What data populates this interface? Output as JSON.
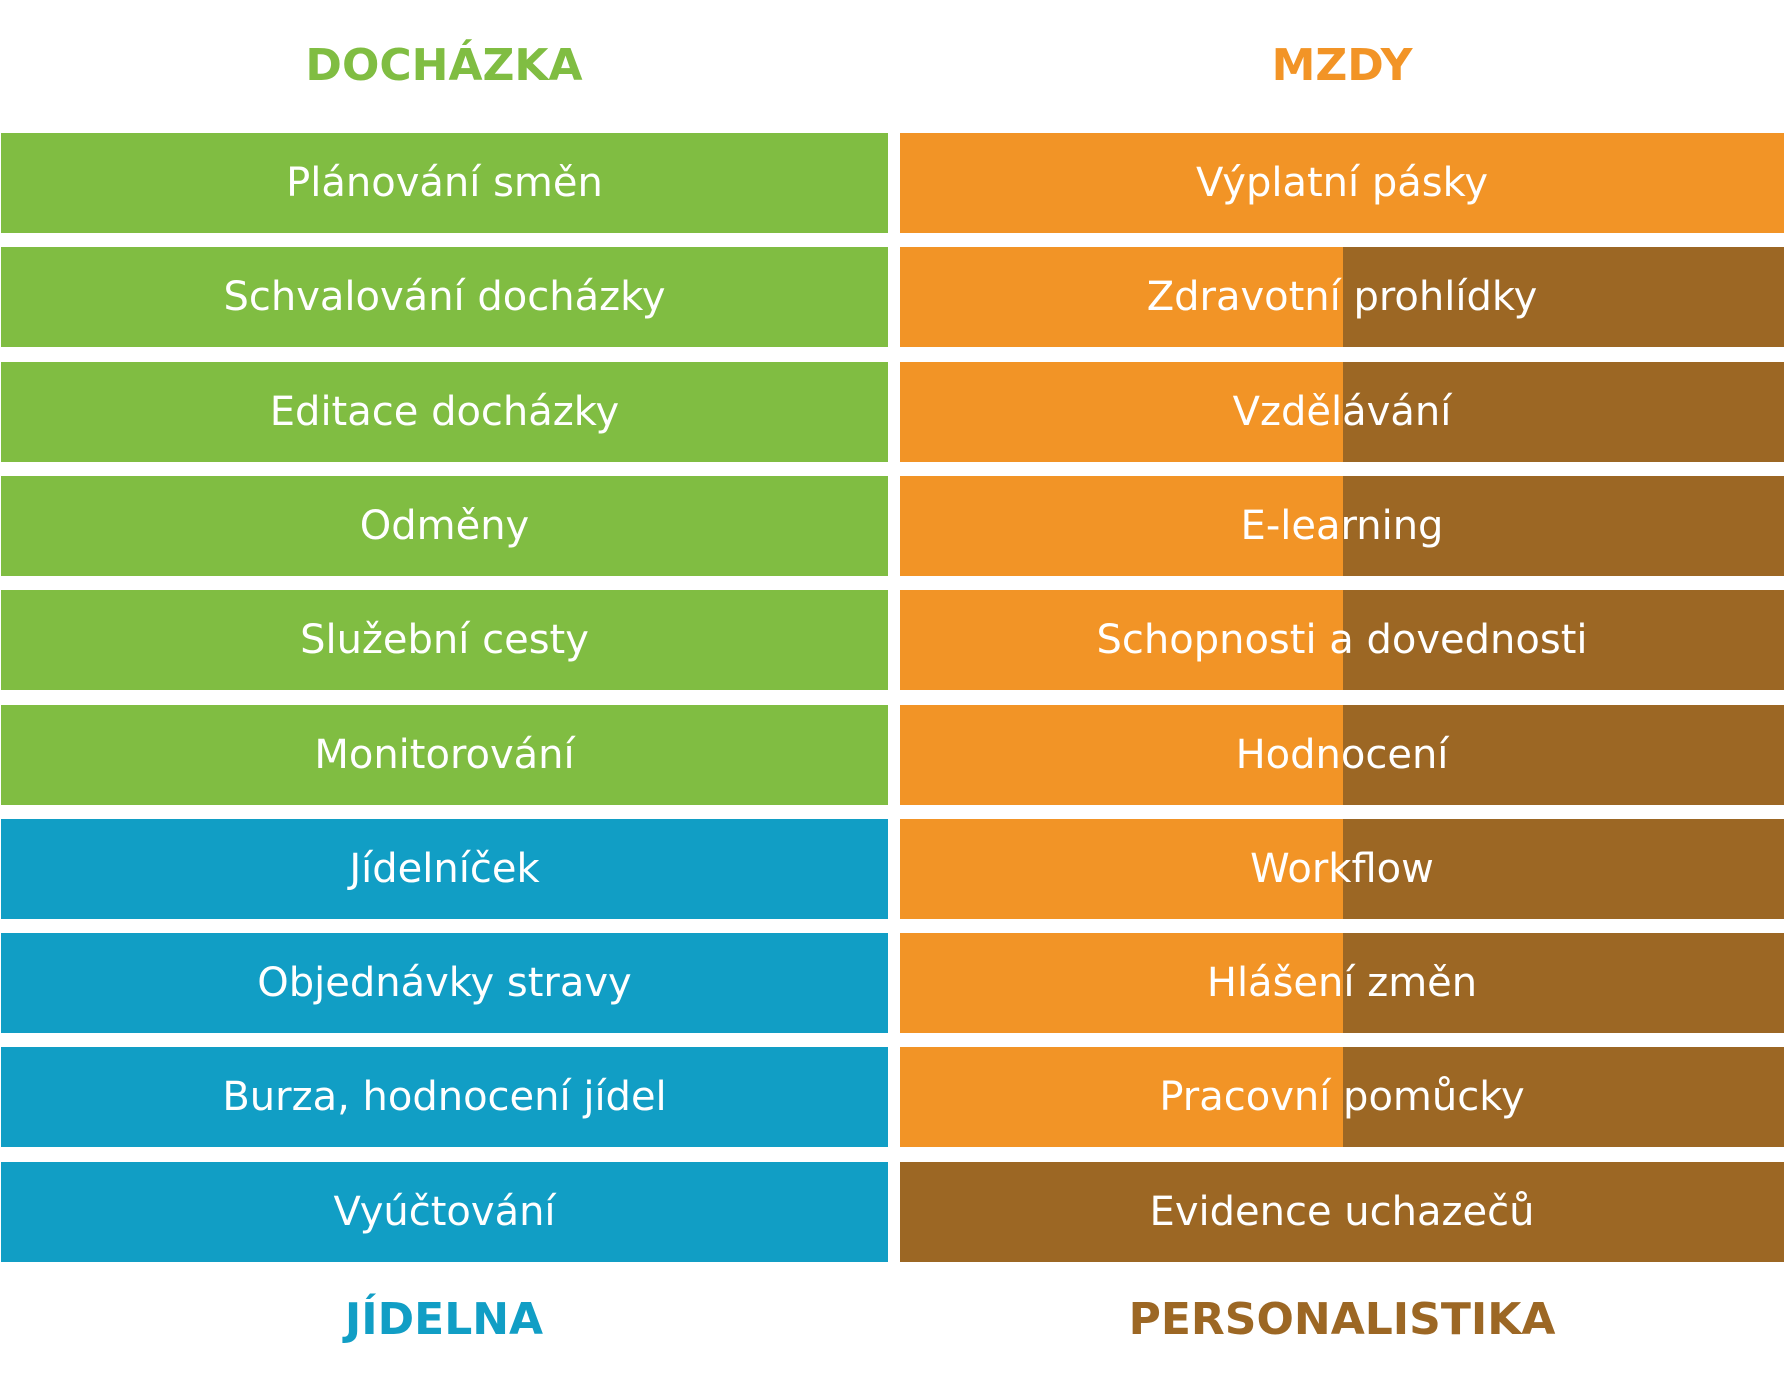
{
  "headings": {
    "dochazka": "DOCHÁZKA",
    "mzdy": "MZDY",
    "jidelna": "JÍDELNA",
    "personalistika": "PERSONALISTIKA"
  },
  "colors": {
    "green": "#80bd42",
    "blue": "#119ec5",
    "orange": "#f29426",
    "brown": "#9c6724",
    "text_on_fill": "#ffffff"
  },
  "left_column": [
    {
      "label": "Plánování směn",
      "group": "dochazka"
    },
    {
      "label": "Schvalování docházky",
      "group": "dochazka"
    },
    {
      "label": "Editace docházky",
      "group": "dochazka"
    },
    {
      "label": "Odměny",
      "group": "dochazka"
    },
    {
      "label": "Služební cesty",
      "group": "dochazka"
    },
    {
      "label": "Monitorování",
      "group": "dochazka"
    },
    {
      "label": "Jídelníček",
      "group": "jidelna"
    },
    {
      "label": "Objednávky stravy",
      "group": "jidelna"
    },
    {
      "label": "Burza, hodnocení jídel",
      "group": "jidelna"
    },
    {
      "label": "Vyúčtování",
      "group": "jidelna"
    }
  ],
  "right_column": [
    {
      "label": "Výplatní pásky",
      "group": "mzdy"
    },
    {
      "label": "Zdravotní prohlídky",
      "group": "mzdy+personalistika"
    },
    {
      "label": "Vzdělávání",
      "group": "mzdy+personalistika"
    },
    {
      "label": "E-learning",
      "group": "mzdy+personalistika"
    },
    {
      "label": "Schopnosti a dovednosti",
      "group": "mzdy+personalistika"
    },
    {
      "label": "Hodnocení",
      "group": "mzdy+personalistika"
    },
    {
      "label": "Workflow",
      "group": "mzdy+personalistika"
    },
    {
      "label": "Hlášení změn",
      "group": "mzdy+personalistika"
    },
    {
      "label": "Pracovní pomůcky",
      "group": "mzdy+personalistika"
    },
    {
      "label": "Evidence uchazečů",
      "group": "personalistika"
    }
  ]
}
